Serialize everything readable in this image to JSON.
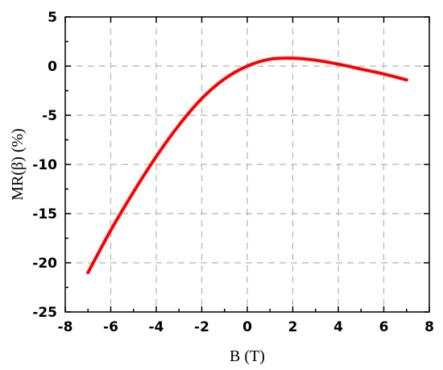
{
  "chart_data": {
    "type": "line",
    "title": "",
    "xlabel": "B (T)",
    "ylabel": "MR(β)  (%)",
    "xlim": [
      -8,
      8
    ],
    "ylim": [
      -25,
      5
    ],
    "xticks": [
      -8,
      -6,
      -4,
      -2,
      0,
      2,
      4,
      6,
      8
    ],
    "yticks": [
      5,
      0,
      -5,
      -10,
      -15,
      -20,
      -25
    ],
    "grid": true,
    "series": [
      {
        "color": "#ff0000",
        "x": [
          -7,
          -6,
          -5,
          -4,
          -3,
          -2,
          -1,
          0,
          1,
          2,
          3,
          4,
          5,
          6,
          7
        ],
        "y": [
          -21.0,
          -16.7,
          -12.8,
          -9.2,
          -6.0,
          -3.3,
          -1.3,
          0.0,
          0.7,
          0.8,
          0.6,
          0.2,
          -0.3,
          -0.8,
          -1.4
        ]
      }
    ]
  }
}
